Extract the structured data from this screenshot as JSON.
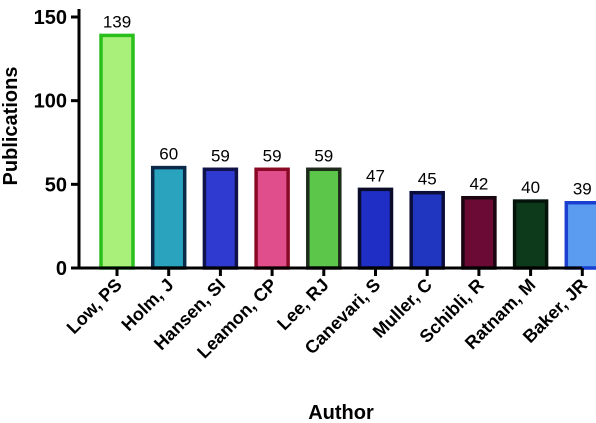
{
  "chart_data": {
    "type": "bar",
    "title": "",
    "xlabel": "Author",
    "ylabel": "Publications",
    "categories": [
      "Low, PS",
      "Holm, J",
      "Hansen, SI",
      "Leamon, CP",
      "Lee, RJ",
      "Canevari, S",
      "Muller, C",
      "Schibli, R",
      "Ratnam, M",
      "Baker, JR"
    ],
    "values": [
      139,
      60,
      59,
      59,
      59,
      47,
      45,
      42,
      40,
      39
    ],
    "data_labels": [
      "139",
      "60",
      "59",
      "59",
      "59",
      "47",
      "45",
      "42",
      "40",
      "39"
    ],
    "ylim": [
      0,
      150
    ],
    "yticks": [
      0,
      50,
      100,
      150
    ],
    "ytick_labels": [
      "0",
      "50",
      "100",
      "150"
    ],
    "grid": false,
    "legend": "none",
    "bar_colors": [
      {
        "fill": "#a8f07a",
        "stroke": "#2bbf1e"
      },
      {
        "fill": "#2aa3bf",
        "stroke": "#0b2a4a"
      },
      {
        "fill": "#2f3ad0",
        "stroke": "#10124a"
      },
      {
        "fill": "#e04f8c",
        "stroke": "#8a0a25"
      },
      {
        "fill": "#5cc64a",
        "stroke": "#1e2a1a"
      },
      {
        "fill": "#1f2fc6",
        "stroke": "#0a0c2a"
      },
      {
        "fill": "#2035c0",
        "stroke": "#0b0e3a"
      },
      {
        "fill": "#6a0a35",
        "stroke": "#1a0510"
      },
      {
        "fill": "#0d3a1a",
        "stroke": "#04140a"
      },
      {
        "fill": "#5b9cf0",
        "stroke": "#1a3fd0"
      }
    ]
  }
}
